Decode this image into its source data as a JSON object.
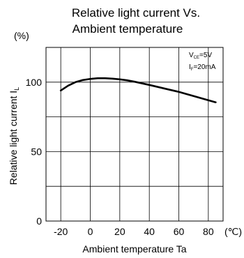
{
  "chart_data": {
    "type": "line",
    "title_line1": "Relative light current Vs.",
    "title_line2": "Ambient temperature",
    "ylabel": "Relative light current I",
    "ylabel_sub": "L",
    "y_unit": "(%)",
    "xlabel": "Ambient temperature Ta",
    "x_unit": "(℃)",
    "xlim": [
      -30,
      90
    ],
    "ylim": [
      0,
      125
    ],
    "x_ticks": [
      -20,
      0,
      20,
      40,
      60,
      80
    ],
    "x_tick_labels": [
      "-20",
      "0",
      "20",
      "40",
      "60",
      "80"
    ],
    "y_ticks": [
      0,
      50,
      100
    ],
    "y_tick_labels": [
      "0",
      "50",
      "100"
    ],
    "grid": true,
    "conditions": [
      {
        "label": "V",
        "sub": "CE",
        "value": "=5V"
      },
      {
        "label": "I",
        "sub": "F",
        "value": "=20mA"
      }
    ],
    "series": [
      {
        "x": [
          -20,
          -15,
          -10,
          -5,
          0,
          5,
          10,
          15,
          20,
          25,
          30,
          40,
          50,
          60,
          70,
          80,
          85
        ],
        "y": [
          94,
          97.5,
          100,
          101.5,
          102.3,
          102.8,
          102.8,
          102.5,
          102,
          101.3,
          100.3,
          98,
          95.5,
          93,
          90,
          87,
          85.5
        ]
      }
    ],
    "line_color": "#000000"
  }
}
